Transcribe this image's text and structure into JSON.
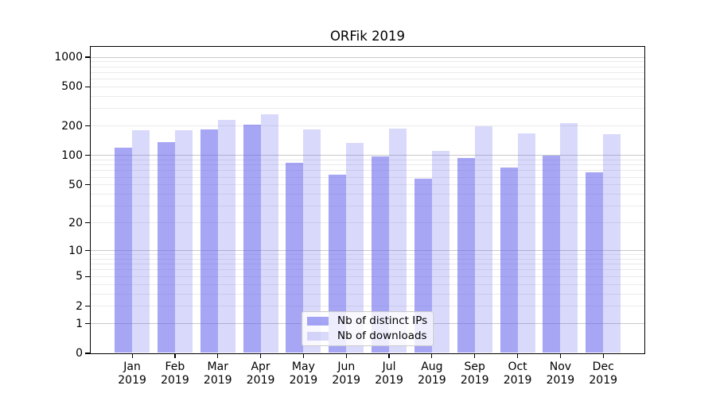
{
  "chart_data": {
    "type": "bar",
    "title": "ORFik 2019",
    "categories": [
      "Jan",
      "Feb",
      "Mar",
      "Apr",
      "May",
      "Jun",
      "Jul",
      "Aug",
      "Sep",
      "Oct",
      "Nov",
      "Dec"
    ],
    "year_label": "2019",
    "series": [
      {
        "name": "Nb of distinct IPs",
        "base_color": "#5c5ced",
        "alpha": 0.55,
        "effective_color": "#a6a6f3",
        "values": [
          120,
          137,
          184,
          205,
          85,
          63,
          98,
          58,
          94,
          75,
          99,
          67
        ]
      },
      {
        "name": "Nb of downloads",
        "base_color": "#5c5ced",
        "alpha": 0.235,
        "effective_color": "#d9d9f9",
        "values": [
          181,
          181,
          230,
          264,
          184,
          135,
          187,
          112,
          197,
          168,
          214,
          165
        ]
      }
    ],
    "y_ticks": [
      0,
      1,
      2,
      5,
      10,
      20,
      50,
      100,
      200,
      500,
      1000
    ],
    "y_scale": "log10(value+1)",
    "ylim": [
      0,
      1270
    ],
    "xlabel": "",
    "ylabel": "",
    "grid": {
      "horizontal": true,
      "major_at": [
        1,
        10,
        100,
        1000
      ],
      "minor_between_decades": true
    },
    "legend_position": "inside-bottom-center",
    "colors": {
      "major_grid": "#c9c9c9",
      "minor_grid": "#eaeaea",
      "axis": "#000000",
      "background": "#ffffff"
    }
  }
}
